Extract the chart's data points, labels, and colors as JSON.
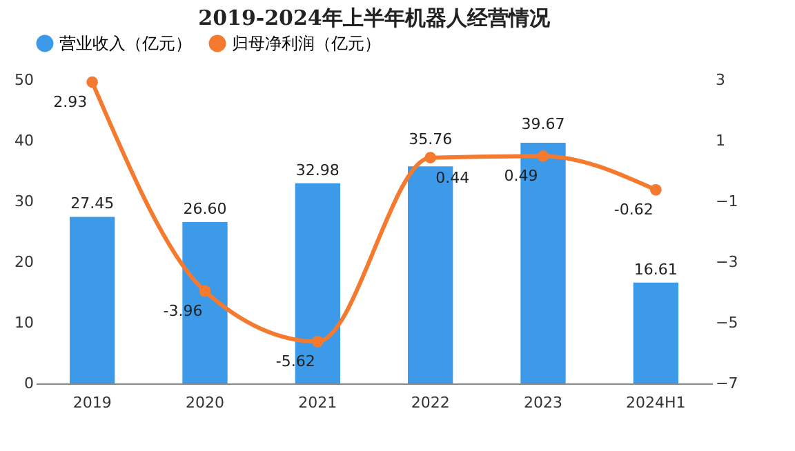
{
  "chart_data": {
    "type": "bar",
    "title": "2019-2024年上半年机器人经营情况",
    "categories": [
      "2019",
      "2020",
      "2021",
      "2022",
      "2023",
      "2024H1"
    ],
    "series": [
      {
        "name": "营业收入（亿元）",
        "color": "#3c9ae8",
        "values": [
          27.45,
          26.6,
          32.98,
          35.76,
          39.67,
          16.61
        ],
        "value_labels": [
          "27.45",
          "26.60",
          "32.98",
          "35.76",
          "39.67",
          "16.61"
        ]
      },
      {
        "name": "归母净利润（亿元）",
        "type": "line",
        "axis": "y2",
        "color": "#f47a30",
        "values": [
          2.93,
          -3.96,
          -5.62,
          0.44,
          0.49,
          -0.62
        ],
        "value_labels": [
          "2.93",
          "-3.96",
          "-5.62",
          "0.44",
          "0.49",
          "-0.62"
        ]
      }
    ],
    "ylim": [
      0,
      50
    ],
    "yticks": [
      0,
      10,
      20,
      30,
      40,
      50
    ],
    "y2lim": [
      -7,
      3
    ],
    "y2ticks": [
      -7,
      -5,
      -3,
      -1,
      1,
      3
    ],
    "legend": "top",
    "marker": "circle",
    "grid": false
  }
}
